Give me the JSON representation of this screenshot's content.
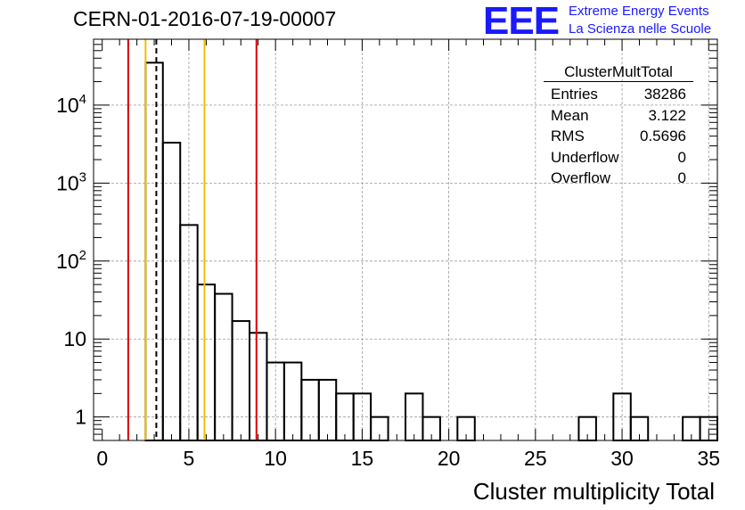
{
  "title": "CERN-01-2016-07-19-00007",
  "logo": {
    "mark": "EEE",
    "line1": "Extreme Energy Events",
    "line2": "La Scienza nelle Scuole",
    "color": "#1a1aff"
  },
  "stats_box": {
    "name": "ClusterMultTotal",
    "rows": [
      {
        "label": "Entries",
        "value": "38286"
      },
      {
        "label": "Mean",
        "value": "3.122"
      },
      {
        "label": "RMS",
        "value": "0.5696"
      },
      {
        "label": "Underflow",
        "value": "0"
      },
      {
        "label": "Overflow",
        "value": "0"
      }
    ]
  },
  "chart_data": {
    "type": "histogram",
    "xlabel": "Cluster multiplicity Total",
    "ylabel": "",
    "xlim": [
      -0.5,
      35.5
    ],
    "ylim": [
      0.5,
      70000
    ],
    "yscale": "log",
    "grid": true,
    "bin_width": 1,
    "x_ticks": [
      0,
      5,
      10,
      15,
      20,
      25,
      30,
      35
    ],
    "y_ticks": [
      {
        "value": 1,
        "label": "1"
      },
      {
        "value": 10,
        "label": "10"
      },
      {
        "value": 100,
        "label": "10",
        "exp": "2"
      },
      {
        "value": 1000,
        "label": "10",
        "exp": "3"
      },
      {
        "value": 10000,
        "label": "10",
        "exp": "4"
      }
    ],
    "bins": [
      {
        "x": 3,
        "count": 35000
      },
      {
        "x": 4,
        "count": 3300
      },
      {
        "x": 5,
        "count": 290
      },
      {
        "x": 6,
        "count": 50
      },
      {
        "x": 7,
        "count": 38
      },
      {
        "x": 8,
        "count": 17
      },
      {
        "x": 9,
        "count": 12
      },
      {
        "x": 10,
        "count": 5
      },
      {
        "x": 11,
        "count": 5
      },
      {
        "x": 12,
        "count": 3
      },
      {
        "x": 13,
        "count": 3
      },
      {
        "x": 14,
        "count": 2
      },
      {
        "x": 15,
        "count": 2
      },
      {
        "x": 16,
        "count": 1
      },
      {
        "x": 18,
        "count": 2
      },
      {
        "x": 19,
        "count": 1
      },
      {
        "x": 21,
        "count": 1
      },
      {
        "x": 28,
        "count": 1
      },
      {
        "x": 30,
        "count": 2
      },
      {
        "x": 31,
        "count": 1
      },
      {
        "x": 34,
        "count": 1
      },
      {
        "x": 35,
        "count": 1
      }
    ],
    "vlines": [
      {
        "x": 1.5,
        "color": "#dd0000",
        "style": "solid"
      },
      {
        "x": 2.5,
        "color": "#f0c000",
        "style": "solid"
      },
      {
        "x": 3.122,
        "color": "#000000",
        "style": "dashed"
      },
      {
        "x": 5.9,
        "color": "#f0c000",
        "style": "solid"
      },
      {
        "x": 8.9,
        "color": "#dd0000",
        "style": "solid"
      }
    ]
  }
}
